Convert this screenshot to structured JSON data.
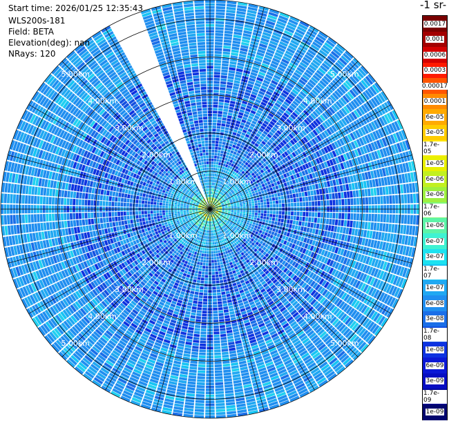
{
  "header": {
    "start_time": "Start time: 2026/01/25 12:35:43",
    "instrument": "WLS200s-181",
    "field": "Field: BETA",
    "elevation": "Elevation(deg): nan",
    "nrays": "NRays: 120"
  },
  "colorbar": {
    "unit_label": "-1 sr-",
    "ticks": [
      "0.0017",
      "0.001",
      "0.0006",
      "0.0003",
      "0.00017",
      "0.0001",
      "6e-05",
      "3e-05",
      "1.7e-05",
      "1e-05",
      "6e-06",
      "3e-06",
      "1.7e-06",
      "1e-06",
      "6e-07",
      "3e-07",
      "1.7e-07",
      "1e-07",
      "6e-08",
      "3e-08",
      "1.7e-08",
      "1e-08",
      "6e-09",
      "3e-09",
      "1.7e-09",
      "1e-09"
    ],
    "colors": [
      "#7a0000",
      "#a30000",
      "#d40000",
      "#ff1a00",
      "#ff5500",
      "#ff8a00",
      "#ffaa00",
      "#ffcc00",
      "#ffe600",
      "#e8f000",
      "#c2f020",
      "#9ef040",
      "#7ff87a",
      "#5df4a8",
      "#3ef2d2",
      "#1de2f0",
      "#16c4f4",
      "#20a8f2",
      "#1f8ef0",
      "#1a6ee8",
      "#1450e0",
      "#0d32e0",
      "#0a18d6",
      "#060ec2",
      "#030aa0",
      "#02066e"
    ]
  },
  "chart_data": {
    "type": "heatmap",
    "subtype": "polar PPI lidar scan",
    "field": "BETA",
    "nrays": 120,
    "range_rings_km": [
      1,
      2,
      3,
      4,
      5
    ],
    "ring_label_texts": [
      "1.00km",
      "2.00km",
      "3.00km",
      "4.00km",
      "5.00km"
    ],
    "max_range_km": 5.5,
    "missing_sector_azimuth_deg": [
      -28,
      -21
    ],
    "dominant_value_range": [
      "1e-08",
      "6e-08"
    ],
    "value_scale": "log",
    "grid": true
  }
}
